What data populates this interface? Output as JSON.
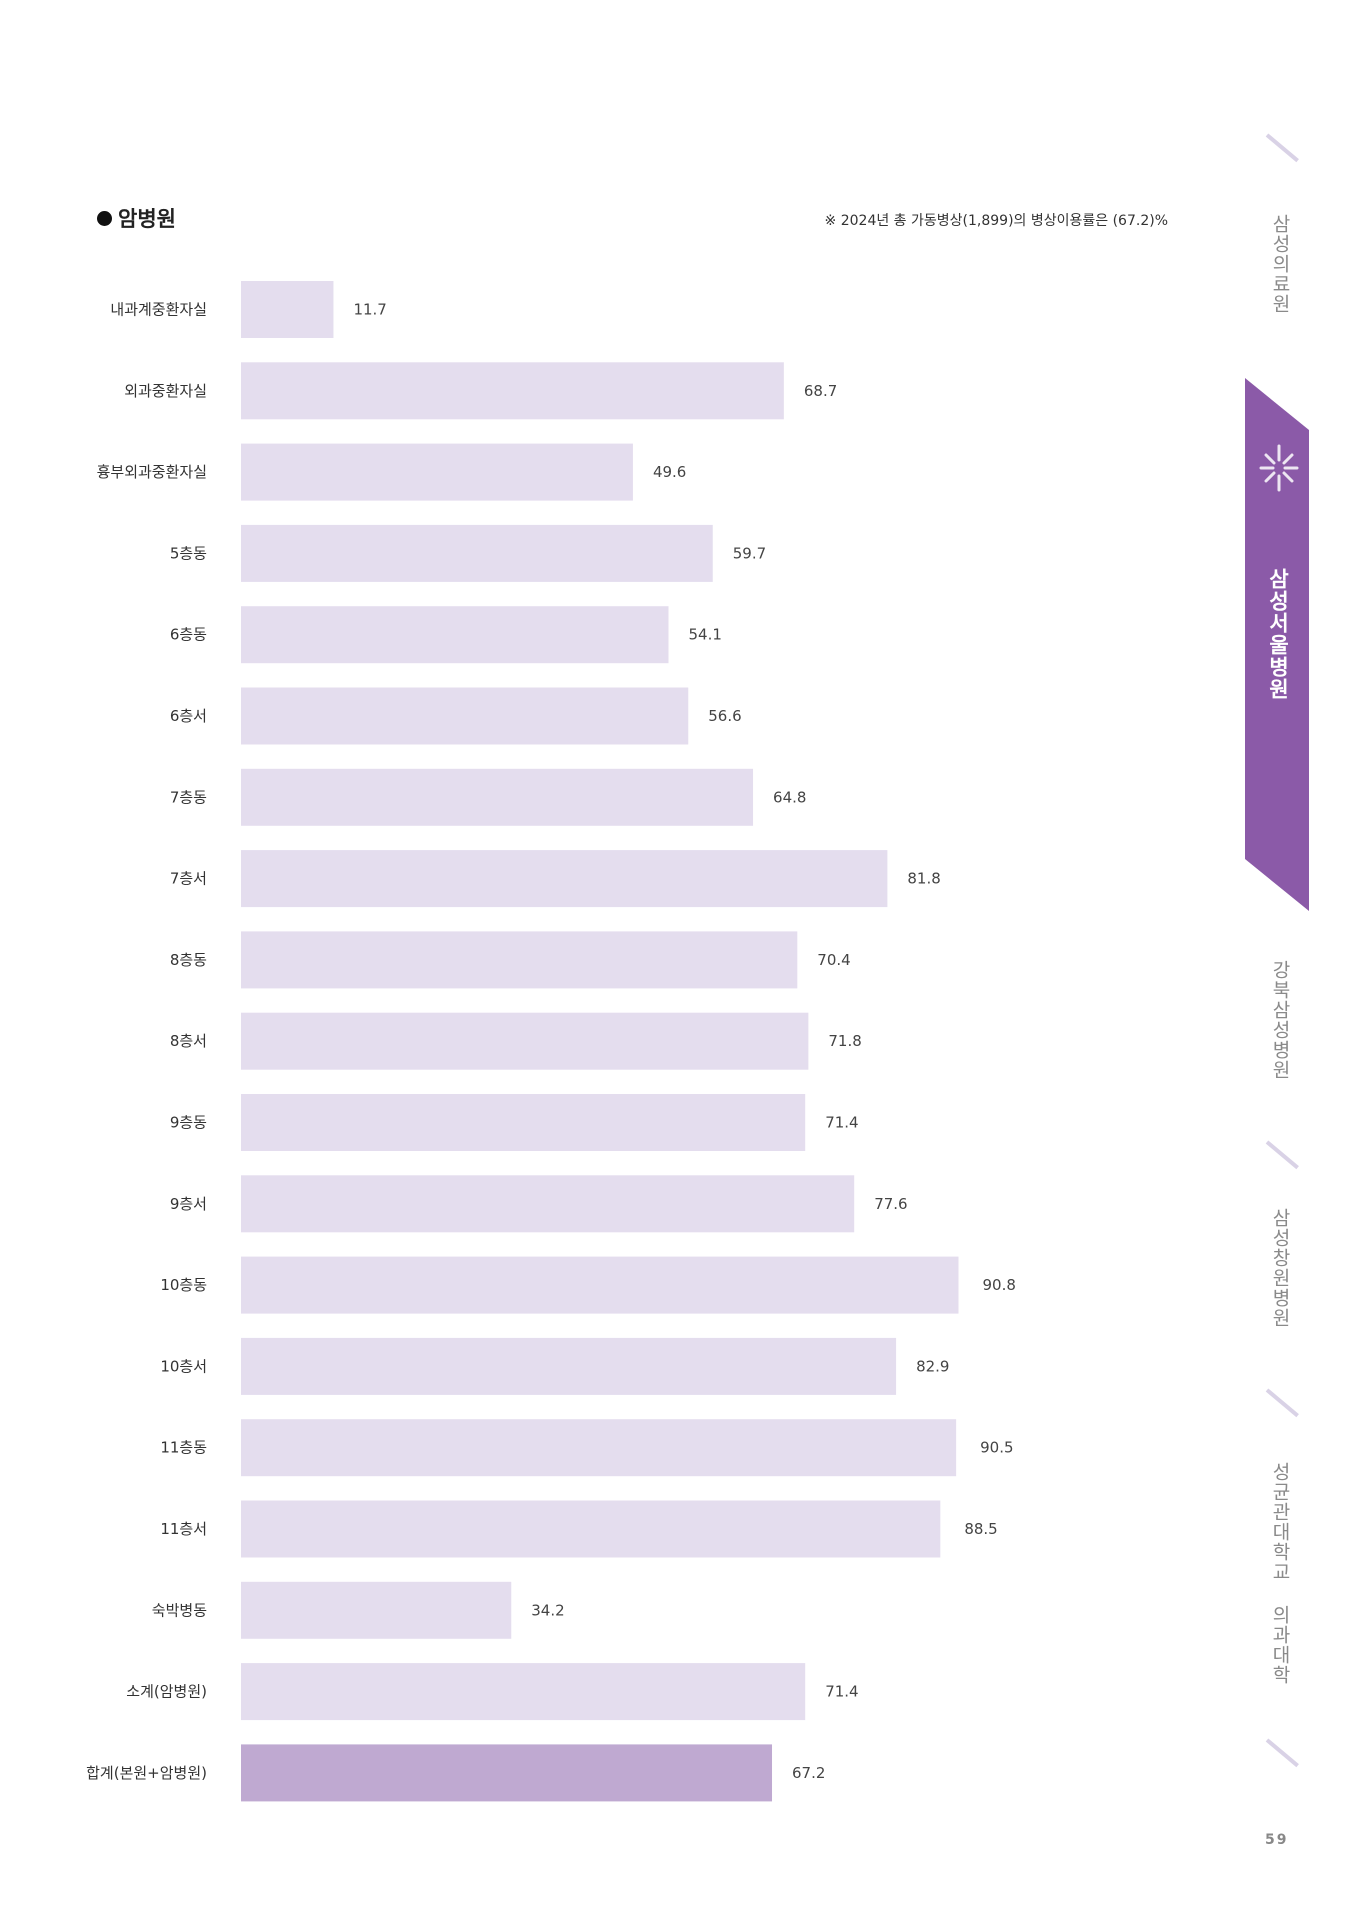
{
  "section": {
    "bullet_title": "암병원"
  },
  "note": "※ 2024년 총 가동병상(1,899)의 병상이용률은 (67.2)%",
  "chart_data": {
    "type": "bar",
    "orientation": "horizontal",
    "title": "",
    "xlabel": "",
    "ylabel": "",
    "categories": [
      "내과계중환자실",
      "외과중환자실",
      "흉부외과중환자실",
      "5층동",
      "6층동",
      "6층서",
      "7층동",
      "7층서",
      "8층동",
      "8층서",
      "9층동",
      "9층서",
      "10층동",
      "10층서",
      "11층동",
      "11층서",
      "숙박병동",
      "소계(암병원)",
      "합계(본원+암병원)"
    ],
    "values": [
      11.7,
      68.7,
      49.6,
      59.7,
      54.1,
      56.6,
      64.8,
      81.8,
      70.4,
      71.8,
      71.4,
      77.6,
      90.8,
      82.9,
      90.5,
      88.5,
      34.2,
      71.4,
      67.2
    ],
    "value_labels": [
      "11.7",
      "68.7",
      "49.6",
      "59.7",
      "54.1",
      "56.6",
      "64.8",
      "81.8",
      "70.4",
      "71.8",
      "71.4",
      "77.6",
      "90.8",
      "82.9",
      "90.5",
      "88.5",
      "34.2",
      "71.4",
      "67.2"
    ],
    "xlim": [
      0,
      100
    ],
    "grid": false,
    "colors": {
      "bar": "#e4ddee",
      "highlight_bar": "#bfa9d1",
      "highlight_index": 18
    }
  },
  "side_nav": {
    "items": [
      "삼성의료원",
      "삼성서울병원",
      "강북삼성병원",
      "삼성창원병원",
      "성균관대학교 의과대학"
    ],
    "active_index": 1,
    "active_color": "#8b5aa8"
  },
  "page_number": "59"
}
